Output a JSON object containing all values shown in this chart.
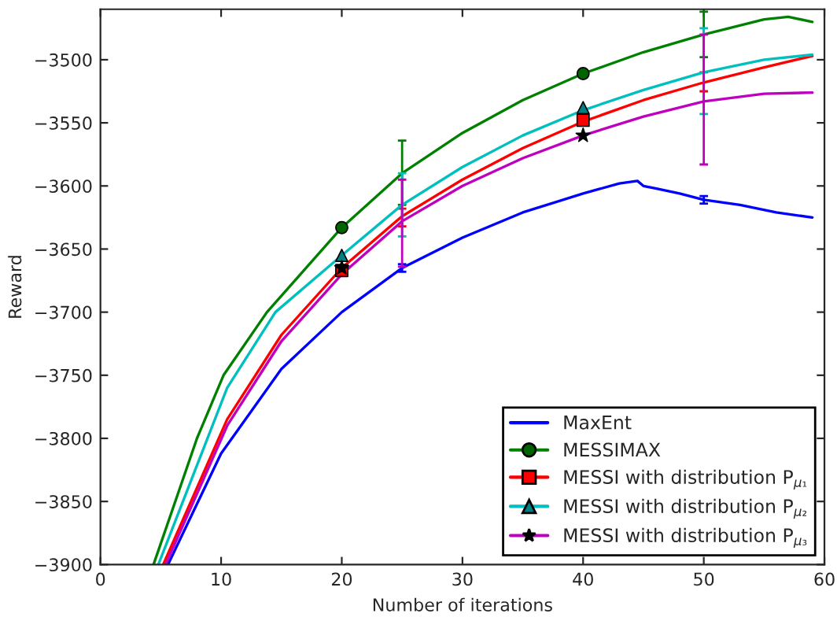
{
  "chart_data": {
    "type": "line",
    "xlabel": "Number of iterations",
    "ylabel": "Reward",
    "xlim": [
      0,
      60
    ],
    "ylim": [
      -3900,
      -3460
    ],
    "xticks": [
      0,
      10,
      20,
      30,
      40,
      50,
      60
    ],
    "yticks": [
      -3900,
      -3850,
      -3800,
      -3750,
      -3700,
      -3650,
      -3600,
      -3550,
      -3500
    ],
    "grid": false,
    "legend": "bottom right",
    "marker": "none",
    "line_style": "solid",
    "series": [
      {
        "name": "MaxEnt",
        "color": "#0000ff",
        "x": [
          5.6,
          10,
          15,
          20,
          25,
          30,
          35,
          40,
          43,
          44.5,
          45,
          46,
          48,
          50,
          53,
          56,
          59
        ],
        "values": [
          -3900,
          -3812,
          -3745,
          -3700,
          -3665,
          -3641,
          -3621,
          -3606,
          -3598,
          -3596,
          -3600,
          -3602,
          -3606,
          -3611,
          -3615,
          -3621,
          -3625
        ],
        "errors": [
          null,
          null,
          null,
          null,
          [
            -3668,
            -3662
          ],
          null,
          null,
          null,
          null,
          null,
          null,
          null,
          null,
          [
            -3614,
            -3608
          ],
          null,
          null,
          null
        ]
      },
      {
        "name": "MESSIMAX",
        "color": "#008000",
        "x": [
          4.4,
          6.2,
          8,
          10.2,
          13.8,
          20,
          25,
          30,
          35,
          40,
          45,
          50,
          55,
          57,
          59
        ],
        "values": [
          -3900,
          -3850,
          -3800,
          -3750,
          -3700,
          -3633,
          -3590,
          -3558,
          -3532,
          -3511,
          -3494,
          -3480,
          -3468,
          -3466,
          -3470
        ],
        "errors": [
          null,
          null,
          null,
          null,
          null,
          null,
          [
            -3615,
            -3564
          ],
          null,
          null,
          null,
          null,
          [
            -3498,
            -3462
          ],
          null,
          null,
          null
        ]
      },
      {
        "name": "MESSI with distribution P$_{μ₁}$",
        "color": "#ff0000",
        "x": [
          5.2,
          10.5,
          15,
          20,
          25,
          30,
          35,
          40,
          45,
          50,
          55,
          59
        ],
        "values": [
          -3900,
          -3785,
          -3718,
          -3665,
          -3624,
          -3595,
          -3570,
          -3549,
          -3532,
          -3518,
          -3506,
          -3497
        ],
        "errors": [
          null,
          null,
          null,
          null,
          [
            -3632,
            -3618
          ],
          null,
          null,
          null,
          null,
          [
            -3525,
            -3510
          ],
          null,
          null
        ]
      },
      {
        "name": "MESSI with distribution P$_{μ₂}$",
        "color": "#00bfbf",
        "x": [
          4.8,
          10.5,
          14.5,
          20,
          25,
          30,
          35,
          40,
          45,
          50,
          55,
          59
        ],
        "values": [
          -3900,
          -3760,
          -3700,
          -3655,
          -3615,
          -3585,
          -3560,
          -3540,
          -3524,
          -3510,
          -3500,
          -3496
        ],
        "errors": [
          null,
          null,
          null,
          null,
          [
            -3640,
            -3590
          ],
          null,
          null,
          null,
          null,
          [
            -3543,
            -3475
          ],
          null,
          null
        ]
      },
      {
        "name": "MESSI with distribution P$_{μ₃}$",
        "color": "#bf00bf",
        "x": [
          5.4,
          10.5,
          15,
          20,
          25,
          30,
          35,
          40,
          45,
          50,
          55,
          59
        ],
        "values": [
          -3900,
          -3790,
          -3723,
          -3670,
          -3628,
          -3600,
          -3578,
          -3560,
          -3545,
          -3533,
          -3527,
          -3526
        ],
        "errors": [
          null,
          null,
          null,
          null,
          [
            -3664,
            -3595
          ],
          null,
          null,
          null,
          null,
          [
            -3583,
            -3480
          ],
          null,
          null
        ]
      },
      {
        "type": "scatter",
        "color": "#006400",
        "marker": "circle",
        "x": [
          20,
          40
        ],
        "values": [
          -3633,
          -3511
        ]
      },
      {
        "type": "scatter",
        "color": "#ff0000",
        "marker": "square",
        "x": [
          20,
          40
        ],
        "values": [
          -3667,
          -3548
        ]
      },
      {
        "type": "scatter",
        "color": "#008080",
        "marker": "triangle",
        "x": [
          20,
          40
        ],
        "values": [
          -3655,
          -3538
        ]
      },
      {
        "type": "scatter",
        "color": "#000000",
        "marker": "star",
        "x": [
          20,
          40
        ],
        "values": [
          -3665,
          -3560
        ]
      }
    ]
  }
}
